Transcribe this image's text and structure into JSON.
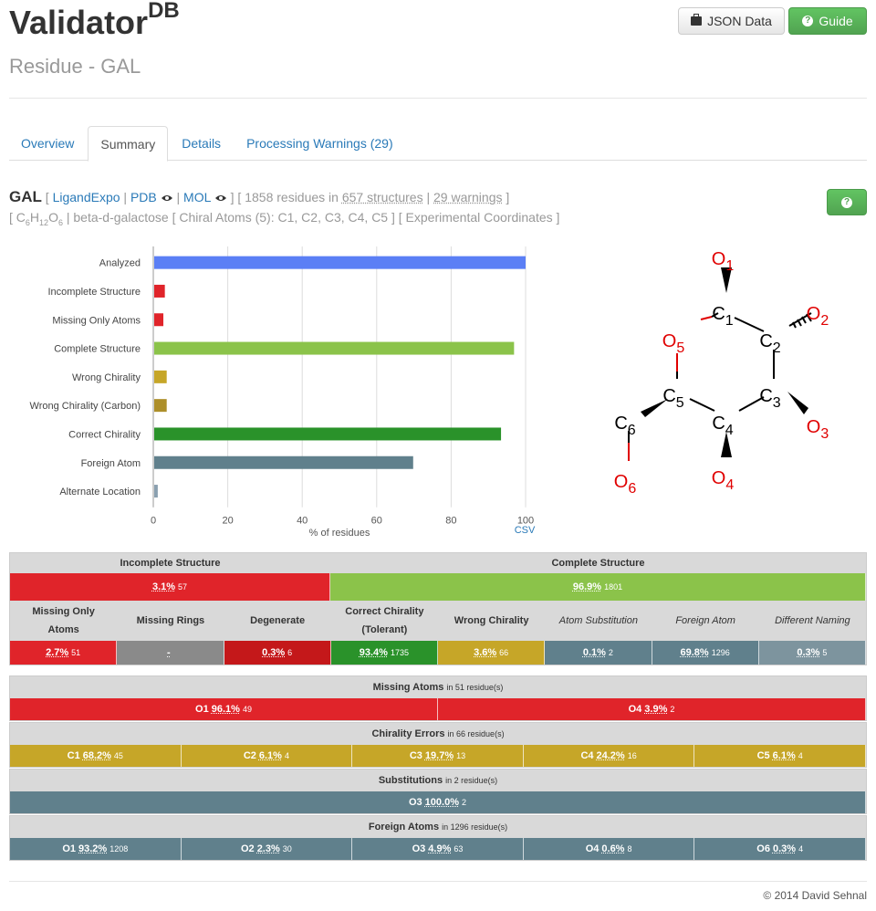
{
  "header": {
    "brand": "Validator",
    "brand_sup": "DB",
    "subtitle": "Residue - GAL",
    "json_button": "JSON Data",
    "guide_button": "Guide"
  },
  "tabs": [
    "Overview",
    "Summary",
    "Details",
    "Processing Warnings (29)"
  ],
  "residue": {
    "code": "GAL",
    "ligandexpo": "LigandExpo",
    "pdb": "PDB",
    "mol": "MOL",
    "residues_text": "1858 residues in",
    "structures": "657 structures",
    "warnings": "29 warnings",
    "name": "beta-d-galactose",
    "chiral": "[ Chiral Atoms (5): C1, C2, C3, C4, C5 ]",
    "coords": "[ Experimental Coordinates ]",
    "help": "?"
  },
  "chart_data": {
    "type": "bar",
    "orientation": "horizontal",
    "categories": [
      "Analyzed",
      "Incomplete Structure",
      "Missing Only Atoms",
      "Complete Structure",
      "Wrong Chirality",
      "Wrong Chirality (Carbon)",
      "Correct Chirality",
      "Foreign Atom",
      "Alternate Location"
    ],
    "values": [
      100,
      3.1,
      2.7,
      96.9,
      3.6,
      3.6,
      93.4,
      69.8,
      1.2
    ],
    "colors": [
      "#5b7ff5",
      "#e0242a",
      "#e0242a",
      "#8bc34a",
      "#c6a628",
      "#ad8f2a",
      "#2a922a",
      "#60808c",
      "#8aa0b0"
    ],
    "xlabel": "% of residues",
    "xticks": [
      "0",
      "20",
      "40",
      "60",
      "80",
      "100"
    ],
    "xlim": [
      0,
      100
    ],
    "grid": true,
    "csv": "CSV"
  },
  "molecule": {
    "atoms": [
      {
        "e": "O",
        "n": "1",
        "color": "#e00000"
      },
      {
        "e": "C",
        "n": "1",
        "color": "#000000"
      },
      {
        "e": "O",
        "n": "2",
        "color": "#e00000"
      },
      {
        "e": "O",
        "n": "5",
        "color": "#e00000"
      },
      {
        "e": "C",
        "n": "2",
        "color": "#000000"
      },
      {
        "e": "C",
        "n": "5",
        "color": "#000000"
      },
      {
        "e": "C",
        "n": "3",
        "color": "#000000"
      },
      {
        "e": "C",
        "n": "6",
        "color": "#000000"
      },
      {
        "e": "C",
        "n": "4",
        "color": "#000000"
      },
      {
        "e": "O",
        "n": "3",
        "color": "#e00000"
      },
      {
        "e": "O",
        "n": "4",
        "color": "#e00000"
      },
      {
        "e": "O",
        "n": "6",
        "color": "#e00000"
      }
    ]
  },
  "summary": {
    "incomplete": {
      "label": "Incomplete Structure",
      "pct": "3.1%",
      "n": "57"
    },
    "complete": {
      "label": "Complete Structure",
      "pct": "96.9%",
      "n": "1801"
    },
    "columns": [
      {
        "label": "Missing Only Atoms",
        "pct": "2.7%",
        "n": "51"
      },
      {
        "label": "Missing Rings",
        "pct": "-",
        "n": ""
      },
      {
        "label": "Degenerate",
        "pct": "0.3%",
        "n": "6"
      },
      {
        "label": "Correct Chirality (Tolerant)",
        "pct": "93.4%",
        "n": "1735"
      },
      {
        "label": "Wrong Chirality",
        "pct": "3.6%",
        "n": "66"
      },
      {
        "label": "Atom Substitution",
        "pct": "0.1%",
        "n": "2"
      },
      {
        "label": "Foreign Atom",
        "pct": "69.8%",
        "n": "1296"
      },
      {
        "label": "Different Naming",
        "pct": "0.3%",
        "n": "5"
      }
    ],
    "colors": [
      "#e0242a",
      "#8bc34a",
      "#e0242a",
      "#8a8a8a",
      "#c4181a",
      "#2a922a",
      "#c6a628",
      "#60808c",
      "#60808c",
      "#7d949e"
    ]
  },
  "missing_atoms": {
    "title": "Missing Atoms",
    "sub": "in 51 residue(s)",
    "items": [
      {
        "atom": "O1",
        "pct": "96.1%",
        "n": "49"
      },
      {
        "atom": "O4",
        "pct": "3.9%",
        "n": "2"
      }
    ]
  },
  "chirality_errors": {
    "title": "Chirality Errors",
    "sub": "in 66 residue(s)",
    "items": [
      {
        "atom": "C1",
        "pct": "68.2%",
        "n": "45"
      },
      {
        "atom": "C2",
        "pct": "6.1%",
        "n": "4"
      },
      {
        "atom": "C3",
        "pct": "19.7%",
        "n": "13"
      },
      {
        "atom": "C4",
        "pct": "24.2%",
        "n": "16"
      },
      {
        "atom": "C5",
        "pct": "6.1%",
        "n": "4"
      }
    ]
  },
  "substitutions": {
    "title": "Substitutions",
    "sub": "in 2 residue(s)",
    "items": [
      {
        "atom": "O3",
        "pct": "100.0%",
        "n": "2"
      }
    ]
  },
  "foreign_atoms": {
    "title": "Foreign Atoms",
    "sub": "in 1296 residue(s)",
    "items": [
      {
        "atom": "O1",
        "pct": "93.2%",
        "n": "1208"
      },
      {
        "atom": "O2",
        "pct": "2.3%",
        "n": "30"
      },
      {
        "atom": "O3",
        "pct": "4.9%",
        "n": "63"
      },
      {
        "atom": "O4",
        "pct": "0.6%",
        "n": "8"
      },
      {
        "atom": "O6",
        "pct": "0.3%",
        "n": "4"
      }
    ]
  },
  "footer": "© 2014 David Sehnal"
}
